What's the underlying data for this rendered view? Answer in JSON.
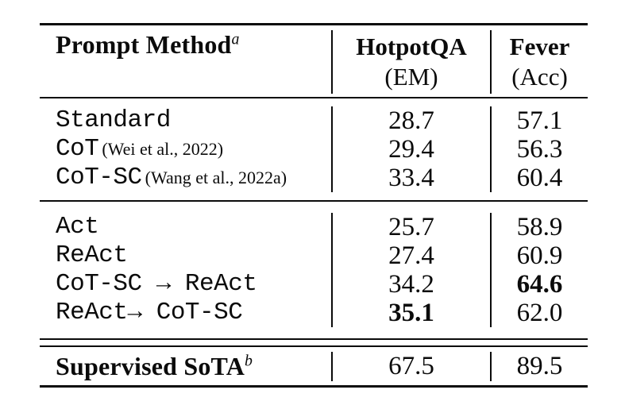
{
  "table": {
    "header": {
      "method_label": "Prompt Method",
      "method_sup": "a",
      "col_em_title": "HotpotQA",
      "col_em_sub": "(EM)",
      "col_acc_title": "Fever",
      "col_acc_sub": "(Acc)"
    },
    "groups": [
      {
        "rows": [
          {
            "method": "Standard",
            "citation": "",
            "em": "28.7",
            "em_bold": false,
            "acc": "57.1",
            "acc_bold": false
          },
          {
            "method": "CoT",
            "citation": "(Wei et al., 2022)",
            "em": "29.4",
            "em_bold": false,
            "acc": "56.3",
            "acc_bold": false
          },
          {
            "method": "CoT-SC",
            "citation": "(Wang et al., 2022a)",
            "em": "33.4",
            "em_bold": false,
            "acc": "60.4",
            "acc_bold": false
          }
        ]
      },
      {
        "rows": [
          {
            "method": "Act",
            "citation": "",
            "em": "25.7",
            "em_bold": false,
            "acc": "58.9",
            "acc_bold": false
          },
          {
            "method": "ReAct",
            "citation": "",
            "em": "27.4",
            "em_bold": false,
            "acc": "60.9",
            "acc_bold": false
          },
          {
            "method": "CoT-SC → ReAct",
            "citation": "",
            "em": "34.2",
            "em_bold": false,
            "acc": "64.6",
            "acc_bold": true
          },
          {
            "method": "ReAct→ CoT-SC",
            "citation": "",
            "em": "35.1",
            "em_bold": true,
            "acc": "62.0",
            "acc_bold": false
          }
        ]
      }
    ],
    "footer": {
      "label": "Supervised SoTA",
      "sup": "b",
      "em": "67.5",
      "acc": "89.5"
    },
    "colors": {
      "text": "#0b0b0b",
      "background": "#ffffff",
      "rule": "#0b0b0b"
    }
  }
}
